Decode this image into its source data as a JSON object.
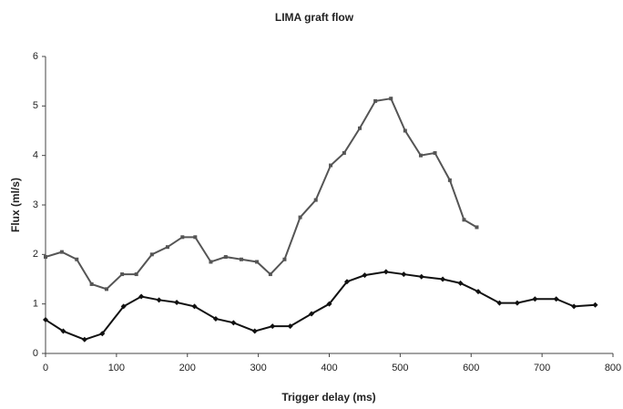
{
  "chart_data": {
    "type": "line",
    "title": "LIMA graft flow",
    "xlabel": "Trigger delay (ms)",
    "ylabel": "Flux (ml/s)",
    "xlim": [
      0,
      800
    ],
    "xticks": [
      0,
      100,
      200,
      300,
      400,
      500,
      600,
      700,
      800
    ],
    "ylim": [
      0,
      6
    ],
    "yticks": [
      0,
      1,
      2,
      3,
      4,
      5,
      6
    ],
    "series": [
      {
        "color": "#555555",
        "marker": "square",
        "x": [
          0,
          23,
          44,
          65,
          86,
          108,
          128,
          150,
          172,
          193,
          211,
          233,
          254,
          276,
          298,
          317,
          337,
          359,
          381,
          402,
          421,
          443,
          465,
          487,
          507,
          529,
          549,
          570,
          590,
          608
        ],
        "values": [
          1.95,
          2.05,
          1.9,
          1.4,
          1.3,
          1.6,
          1.6,
          2.0,
          2.15,
          2.35,
          2.35,
          1.85,
          1.95,
          1.9,
          1.85,
          1.6,
          1.9,
          2.75,
          3.1,
          3.8,
          4.05,
          4.55,
          5.1,
          5.15,
          4.5,
          4.0,
          4.05,
          3.5,
          2.7,
          2.55
        ]
      },
      {
        "color": "#111111",
        "marker": "diamond",
        "x": [
          0,
          25,
          55,
          80,
          110,
          135,
          160,
          185,
          210,
          240,
          265,
          295,
          320,
          345,
          375,
          400,
          425,
          450,
          480,
          505,
          530,
          560,
          585,
          610,
          640,
          665,
          690,
          720,
          745,
          775
        ],
        "values": [
          0.68,
          0.45,
          0.28,
          0.4,
          0.95,
          1.15,
          1.08,
          1.03,
          0.95,
          0.7,
          0.62,
          0.45,
          0.55,
          0.55,
          0.8,
          1.0,
          1.45,
          1.58,
          1.65,
          1.6,
          1.55,
          1.5,
          1.42,
          1.25,
          1.02,
          1.02,
          1.1,
          1.1,
          0.95,
          0.98
        ]
      }
    ]
  }
}
